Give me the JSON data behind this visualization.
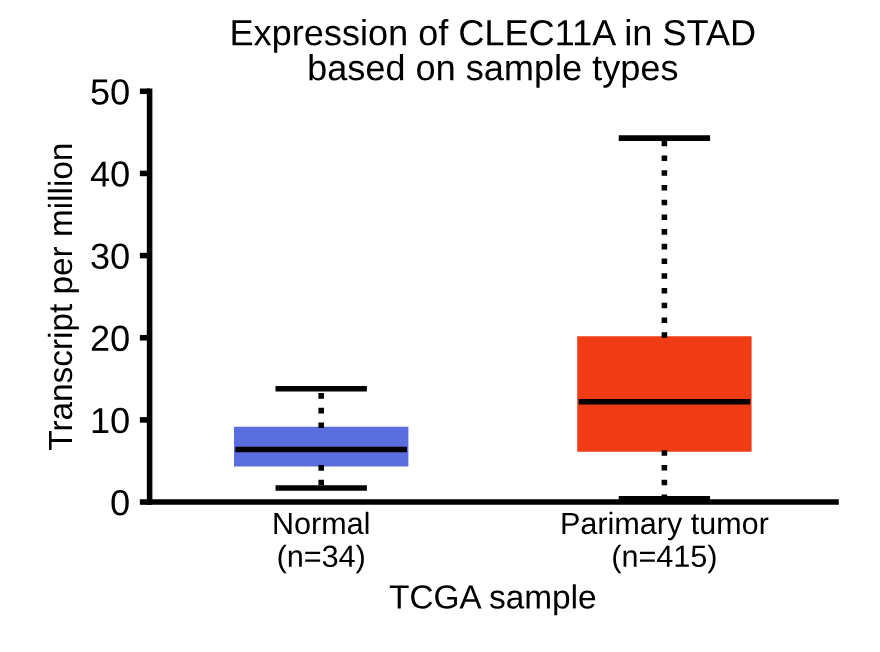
{
  "chart_data": {
    "type": "box",
    "title": "Expression of CLEC11A in STAD\nbased on sample types",
    "xlabel": "TCGA sample",
    "ylabel": "Transcript per million",
    "categories": [
      "Normal\n(n=34)",
      "Parimary tumor\n(n=415)"
    ],
    "colors": [
      "#5a6ee0",
      "#f03c14"
    ],
    "boxes": [
      {
        "low": 1.7,
        "q1": 4.5,
        "median": 6.4,
        "q3": 9.0,
        "high": 13.8
      },
      {
        "low": 0.4,
        "q1": 6.3,
        "median": 12.2,
        "q3": 20.0,
        "high": 44.3
      }
    ],
    "ylim": [
      0,
      50
    ],
    "yticks": [
      0,
      10,
      20,
      30,
      40,
      50
    ],
    "grid": false,
    "legend": false
  }
}
